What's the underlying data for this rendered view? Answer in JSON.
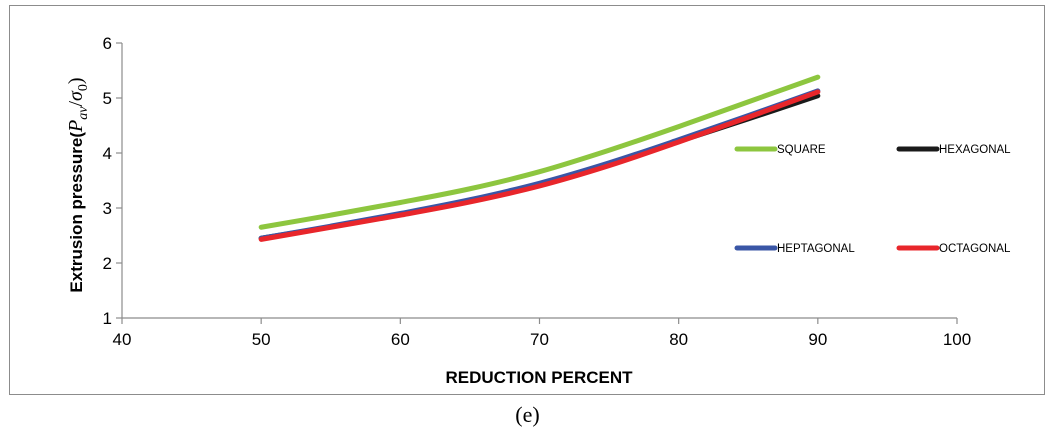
{
  "caption": "(e)",
  "chart_data": {
    "type": "line",
    "xlabel": "REDUCTION PERCENT",
    "ylabel_prefix": "Extrusion pressure(",
    "ylabel_P": "P",
    "ylabel_sub_av": "av",
    "ylabel_slash": "/",
    "ylabel_sigma": "σ",
    "ylabel_sub_0": "0",
    "ylabel_close": ")",
    "xlim": [
      40,
      100
    ],
    "ylim": [
      1,
      6
    ],
    "xticks": [
      "40",
      "50",
      "60",
      "70",
      "80",
      "90",
      "100"
    ],
    "yticks": [
      "1",
      "2",
      "3",
      "4",
      "5",
      "6"
    ],
    "grid": false,
    "legend_placement": "right",
    "series": [
      {
        "name": "SQUARE",
        "color": "#8dc63f",
        "x": [
          50,
          55,
          60,
          65,
          70,
          75,
          80,
          85,
          90
        ],
        "y": [
          2.65,
          2.87,
          3.1,
          3.35,
          3.66,
          4.05,
          4.48,
          4.93,
          5.38
        ]
      },
      {
        "name": "HEXAGONAL",
        "color": "#1a1a1a",
        "x": [
          50,
          55,
          60,
          65,
          70,
          75,
          80,
          85,
          90
        ],
        "y": [
          2.45,
          2.66,
          2.89,
          3.13,
          3.43,
          3.8,
          4.21,
          4.62,
          5.04
        ]
      },
      {
        "name": "HEPTAGONAL",
        "color": "#3a56a6",
        "x": [
          50,
          55,
          60,
          65,
          70,
          75,
          80,
          85,
          90
        ],
        "y": [
          2.45,
          2.67,
          2.9,
          3.15,
          3.45,
          3.82,
          4.24,
          4.68,
          5.13
        ]
      },
      {
        "name": "OCTAGONAL",
        "color": "#e8262b",
        "x": [
          50,
          55,
          60,
          65,
          70,
          75,
          80,
          85,
          90
        ],
        "y": [
          2.43,
          2.65,
          2.87,
          3.11,
          3.4,
          3.77,
          4.2,
          4.65,
          5.11
        ]
      }
    ]
  }
}
